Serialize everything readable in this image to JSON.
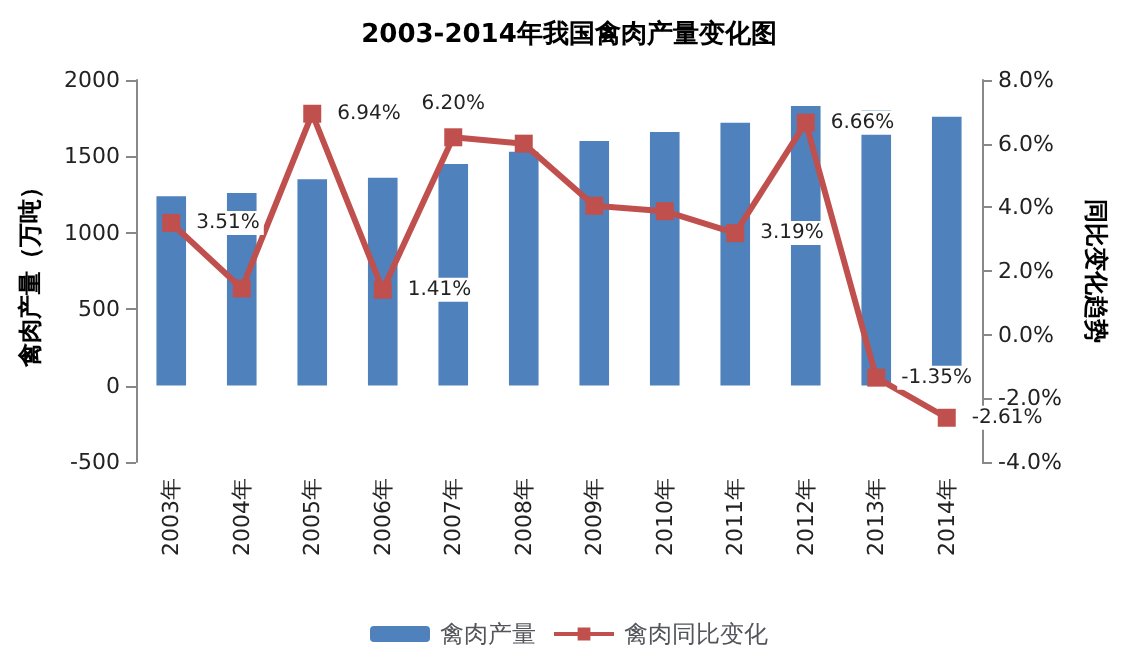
{
  "chart_data": {
    "type": "bar",
    "title": "2003-2014年我国禽肉产量变化图",
    "categories": [
      "2003年",
      "2004年",
      "2005年",
      "2006年",
      "2007年",
      "2008年",
      "2009年",
      "2010年",
      "2011年",
      "2012年",
      "2013年",
      "2014年"
    ],
    "series": [
      {
        "name": "禽肉产量",
        "color": "#4f81bd",
        "values": [
          1240,
          1260,
          1350,
          1360,
          1450,
          1530,
          1600,
          1660,
          1720,
          1830,
          1800,
          1760
        ]
      },
      {
        "name": "禽肉同比变化",
        "type": "line",
        "axis": "y2",
        "color": "#c0504d",
        "values": [
          3.51,
          1.45,
          6.94,
          1.41,
          6.2,
          6.0,
          4.05,
          3.88,
          3.19,
          6.66,
          -1.35,
          -2.61
        ],
        "value_labels": [
          "3.51%",
          null,
          "6.94%",
          "1.41%",
          "6.20%",
          null,
          null,
          null,
          "3.19%",
          "6.66%",
          "-1.35%",
          "-2.61%"
        ]
      }
    ],
    "ylabel": "禽肉产量（万吨）",
    "y2label": "同比变化趋势",
    "ylim": [
      -500,
      2000
    ],
    "yticks": [
      -500,
      0,
      500,
      1000,
      1500,
      2000
    ],
    "y2lim": [
      -4,
      8
    ],
    "y2ticks": [
      {
        "value": -4,
        "label": "-4.0%"
      },
      {
        "value": -2,
        "label": "-2.0%"
      },
      {
        "value": 0,
        "label": "0.0%"
      },
      {
        "value": 2,
        "label": "2.0%"
      },
      {
        "value": 4,
        "label": "4.0%"
      },
      {
        "value": 6,
        "label": "6.0%"
      },
      {
        "value": 8,
        "label": "8.0%"
      }
    ],
    "marker": "square",
    "grid": false,
    "legend": "bottom"
  }
}
